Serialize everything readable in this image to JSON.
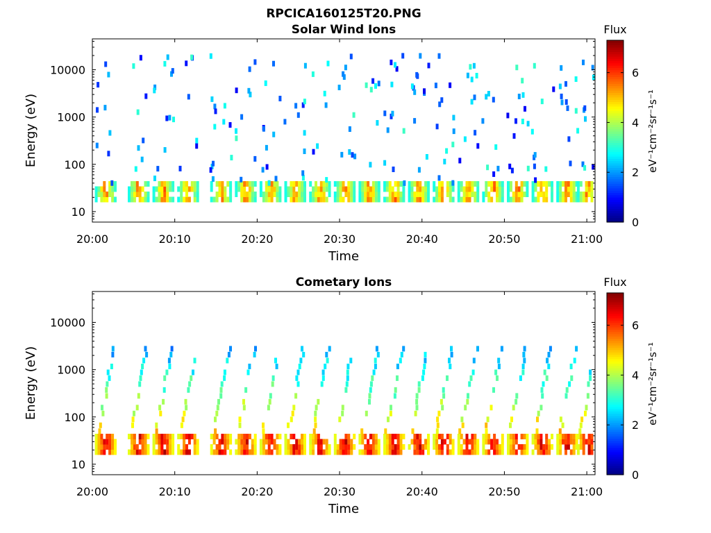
{
  "figure": {
    "title": "RPCICA160125T20.PNG"
  },
  "chart_data": [
    {
      "type": "heatmap",
      "title": "Solar Wind Ions",
      "xlabel": "Time",
      "ylabel": "Energy (eV)",
      "x_ticks": [
        "20:00",
        "20:10",
        "20:20",
        "20:30",
        "20:40",
        "20:50",
        "21:00"
      ],
      "x_range": [
        "20:00",
        "21:01"
      ],
      "y_scale": "log",
      "y_ticks": [
        10,
        100,
        1000,
        10000
      ],
      "y_range": [
        6,
        45000
      ],
      "colorbar": {
        "label_top": "Flux",
        "label_side": "eV⁻¹cm⁻²sr⁻¹s⁻¹",
        "range": [
          0,
          7.3
        ],
        "ticks": [
          0,
          2,
          4,
          6
        ],
        "colormap": "jet"
      },
      "pattern": {
        "sweep_centers_min": [
          1.5,
          5.5,
          8.5,
          11.5,
          15.5,
          18.5,
          21.5,
          24.5,
          27.5,
          30.5,
          33.5,
          36.5,
          39.5,
          42.5,
          45.5,
          48.5,
          51.5,
          54.5,
          57.5,
          60.0
        ],
        "band_energy_eV": [
          18,
          45
        ],
        "band_flux_range": [
          2.5,
          6.2
        ],
        "scatter_energy_eV": [
          40,
          20000
        ],
        "scatter_flux_range": [
          0.8,
          3.2
        ]
      }
    },
    {
      "type": "heatmap",
      "title": "Cometary Ions",
      "xlabel": "Time",
      "ylabel": "Energy (eV)",
      "x_ticks": [
        "20:00",
        "20:10",
        "20:20",
        "20:30",
        "20:40",
        "20:50",
        "21:00"
      ],
      "x_range": [
        "20:00",
        "21:01"
      ],
      "y_scale": "log",
      "y_ticks": [
        10,
        100,
        1000,
        10000
      ],
      "y_range": [
        6,
        45000
      ],
      "colorbar": {
        "label_top": "Flux",
        "label_side": "eV⁻¹cm⁻²sr⁻¹s⁻¹",
        "range": [
          0,
          7.3
        ],
        "ticks": [
          0,
          2,
          4,
          6
        ],
        "colormap": "jet"
      },
      "pattern": {
        "sweep_centers_min": [
          1.5,
          5.5,
          8.5,
          11.5,
          15.5,
          18.5,
          21.5,
          24.5,
          27.5,
          30.5,
          33.5,
          36.5,
          39.5,
          42.5,
          45.5,
          48.5,
          51.5,
          54.5,
          57.5,
          60.0
        ],
        "band_energy_eV": [
          18,
          45
        ],
        "band_flux_range": [
          4.0,
          7.3
        ],
        "arc_energy_eV": [
          50,
          3000
        ],
        "arc_flux_range": [
          2.0,
          4.8
        ]
      }
    }
  ]
}
